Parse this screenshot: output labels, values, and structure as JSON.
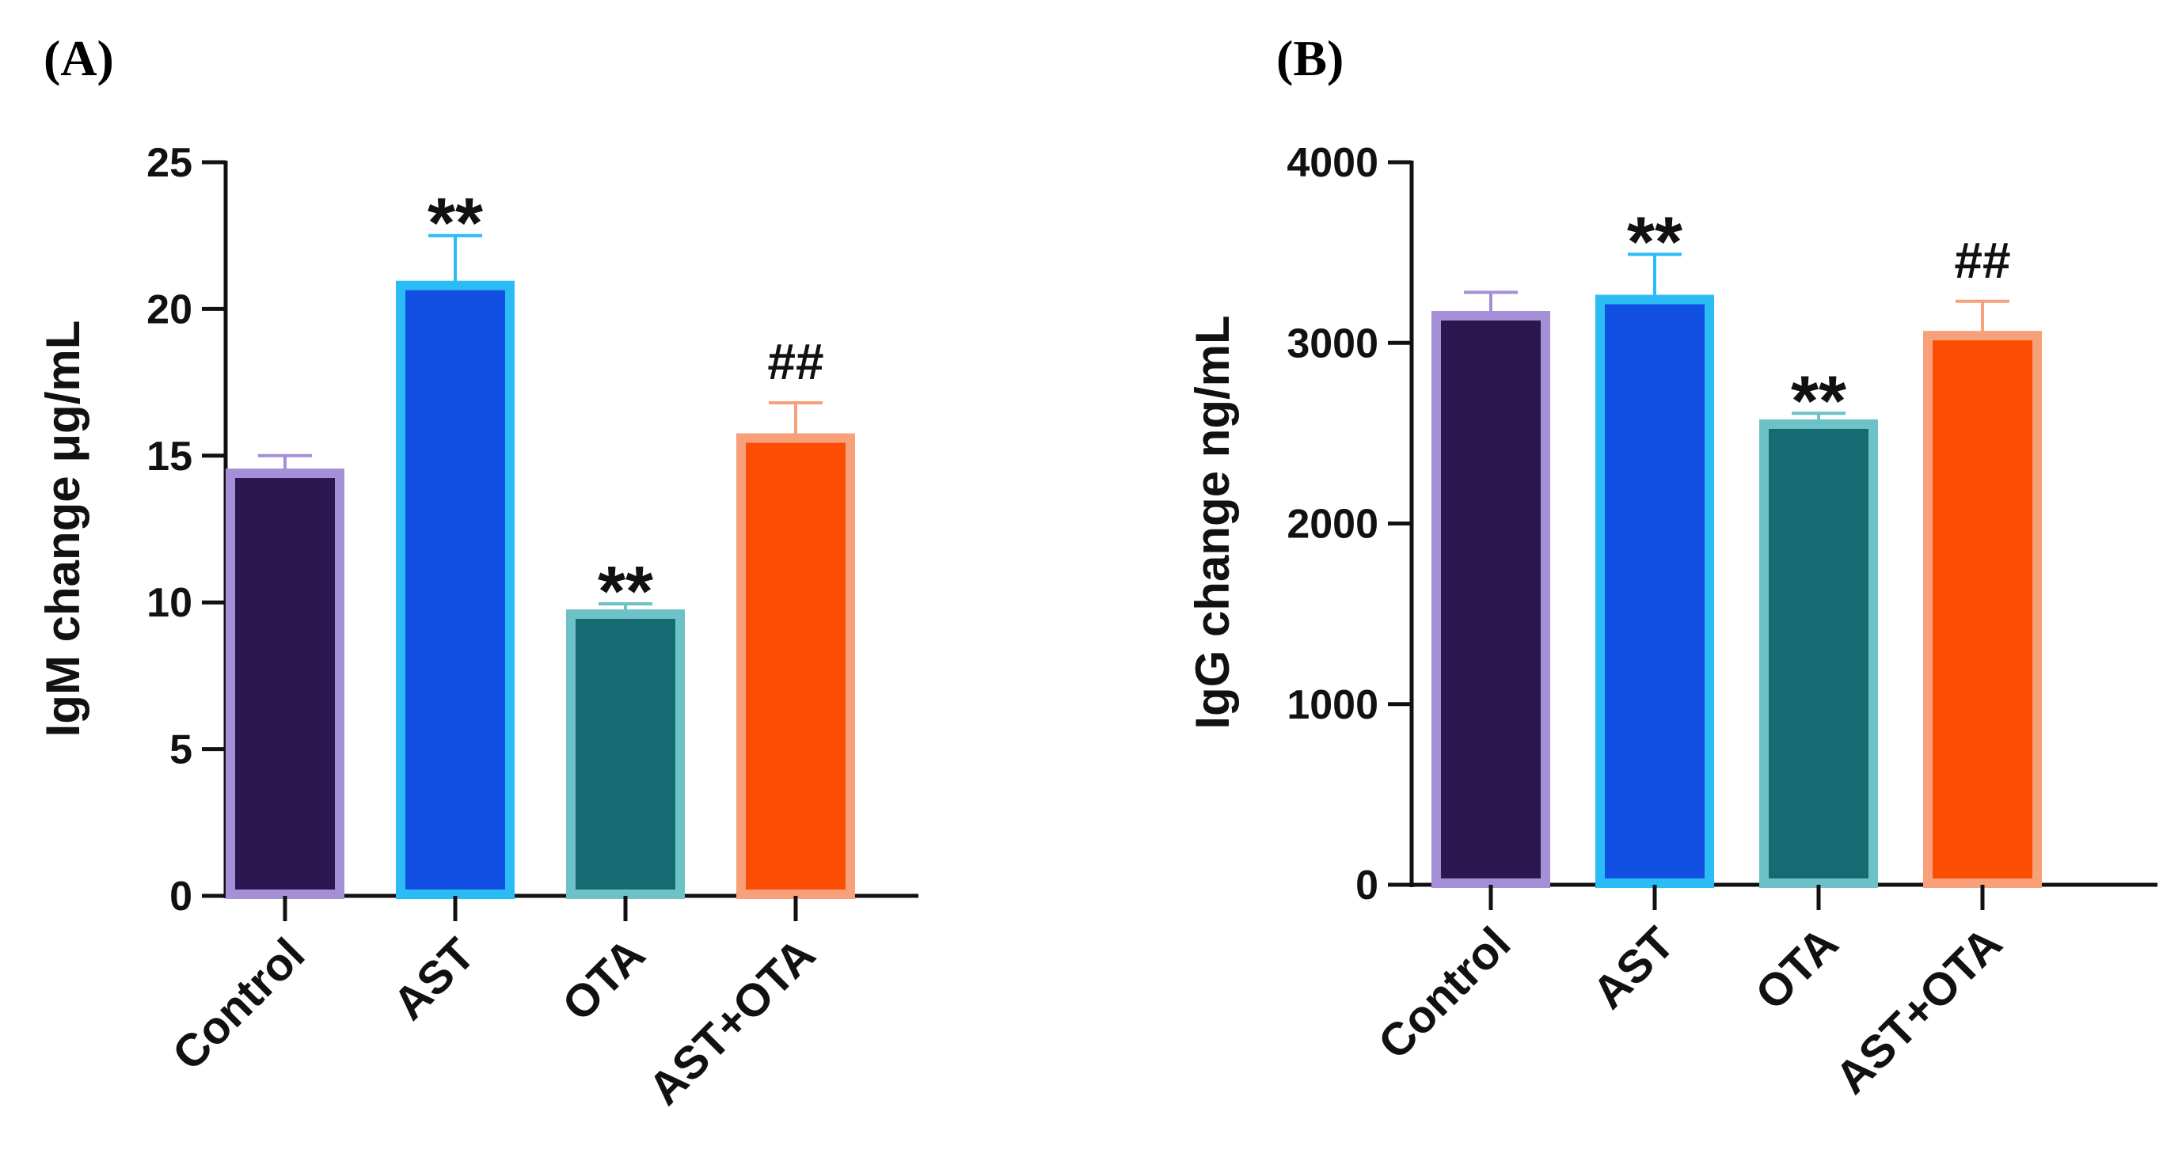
{
  "colors": {
    "axis": "#111111",
    "fills": [
      "#2b174f",
      "#1150e2",
      "#156b72",
      "#fb4e04"
    ],
    "outlines": [
      "#a58fd7",
      "#2bbcf6",
      "#6cc2c6",
      "#f8a07a"
    ]
  },
  "chart_data": [
    {
      "type": "bar",
      "panel_label": "(A)",
      "ylabel": "IgM change μg/mL",
      "xlabel": "",
      "categories": [
        "Control",
        "AST",
        "OTA",
        "AST+OTA"
      ],
      "values": [
        14.4,
        20.8,
        9.6,
        15.6
      ],
      "errors": [
        0.6,
        1.7,
        0.35,
        1.2
      ],
      "annotations": [
        "",
        "**",
        "**",
        "##"
      ],
      "ylim": [
        0,
        25
      ],
      "yticks": [
        0,
        5,
        10,
        15,
        20,
        25
      ],
      "ytick_labels": [
        "0",
        "5",
        "10",
        "15",
        "20",
        "25"
      ],
      "grid": false,
      "legend": "none"
    },
    {
      "type": "bar",
      "panel_label": "(B)",
      "ylabel": "IgG change ng/mL",
      "xlabel": "",
      "categories": [
        "Control",
        "AST",
        "OTA",
        "AST+OTA"
      ],
      "values": [
        3150,
        3240,
        2550,
        3040
      ],
      "errors": [
        130,
        250,
        60,
        190
      ],
      "annotations": [
        "",
        "**",
        "**",
        "##"
      ],
      "ylim": [
        0,
        4000
      ],
      "yticks": [
        0,
        1000,
        2000,
        3000,
        4000
      ],
      "ytick_labels": [
        "0",
        "1000",
        "2000",
        "3000",
        "4000"
      ],
      "grid": false,
      "legend": "none"
    }
  ]
}
